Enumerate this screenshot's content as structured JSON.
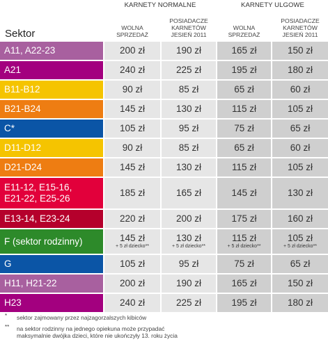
{
  "groups": [
    "KARNETY NORMALNE",
    "KARNETY ULGOWE"
  ],
  "columns": [
    [
      "WOLNA",
      "SPRZEDAŻ"
    ],
    [
      "POSIADACZE",
      "KARNETÓW",
      "JESIEŃ 2011"
    ],
    [
      "WOLNA",
      "SPRZEDAŻ"
    ],
    [
      "POSIADACZE",
      "KARNETÓW",
      "JESIEŃ 2011"
    ]
  ],
  "sektor_label": "Sektor",
  "rows": [
    {
      "label": [
        "A11, A22-23"
      ],
      "color": "#a8609f",
      "cells": [
        "200 zł",
        "190 zł",
        "165 zł",
        "150 zł"
      ]
    },
    {
      "label": [
        "A21"
      ],
      "color": "#a3007f",
      "cells": [
        "240 zł",
        "225 zł",
        "195 zł",
        "180 zł"
      ]
    },
    {
      "label": [
        "B11-B12"
      ],
      "color": "#f5c400",
      "cells": [
        "90 zł",
        "85 zł",
        "65 zł",
        "60 zł"
      ]
    },
    {
      "label": [
        "B21-B24"
      ],
      "color": "#ee7d12",
      "cells": [
        "145 zł",
        "130 zł",
        "115 zł",
        "105 zł"
      ]
    },
    {
      "label": [
        "C*"
      ],
      "color": "#0b55a6",
      "cells": [
        "105 zł",
        "95 zł",
        "75 zł",
        "65 zł"
      ]
    },
    {
      "label": [
        "D11-D12"
      ],
      "color": "#f5c400",
      "cells": [
        "90 zł",
        "85 zł",
        "65 zł",
        "60 zł"
      ]
    },
    {
      "label": [
        "D21-D24"
      ],
      "color": "#ee7d12",
      "cells": [
        "145 zł",
        "130 zł",
        "115 zł",
        "105 zł"
      ]
    },
    {
      "label": [
        "E11-12, E15-16,",
        "E21-22, E25-26"
      ],
      "color": "#e2003b",
      "cells": [
        "185 zł",
        "165 zł",
        "145 zł",
        "130 zł"
      ]
    },
    {
      "label": [
        "E13-14, E23-24"
      ],
      "color": "#b5002c",
      "cells": [
        "220 zł",
        "200 zł",
        "175 zł",
        "160 zł"
      ]
    },
    {
      "label": [
        "F (sektor rodzinny)"
      ],
      "color": "#2d8a2a",
      "cells": [
        "145 zł",
        "130 zł",
        "115 zł",
        "105 zł"
      ],
      "note": "+ 5 zł dziecko**"
    },
    {
      "label": [
        "G"
      ],
      "color": "#0b55a6",
      "cells": [
        "105 zł",
        "95 zł",
        "75 zł",
        "65 zł"
      ]
    },
    {
      "label": [
        "H11, H21-22"
      ],
      "color": "#a8609f",
      "cells": [
        "200 zł",
        "190 zł",
        "165 zł",
        "150 zł"
      ]
    },
    {
      "label": [
        "H23"
      ],
      "color": "#a3007f",
      "cells": [
        "240 zł",
        "225 zł",
        "195 zł",
        "180 zł"
      ]
    }
  ],
  "footnotes": [
    {
      "mark": "*",
      "lines": [
        "sektor zajmowany przez najzagorzalszych kibiców"
      ]
    },
    {
      "mark": "**",
      "lines": [
        "na sektor rodzinny na jednego opiekuna może przypadać",
        "maksymalnie dwójka dzieci, które nie ukończyły 13. roku życia"
      ]
    }
  ]
}
